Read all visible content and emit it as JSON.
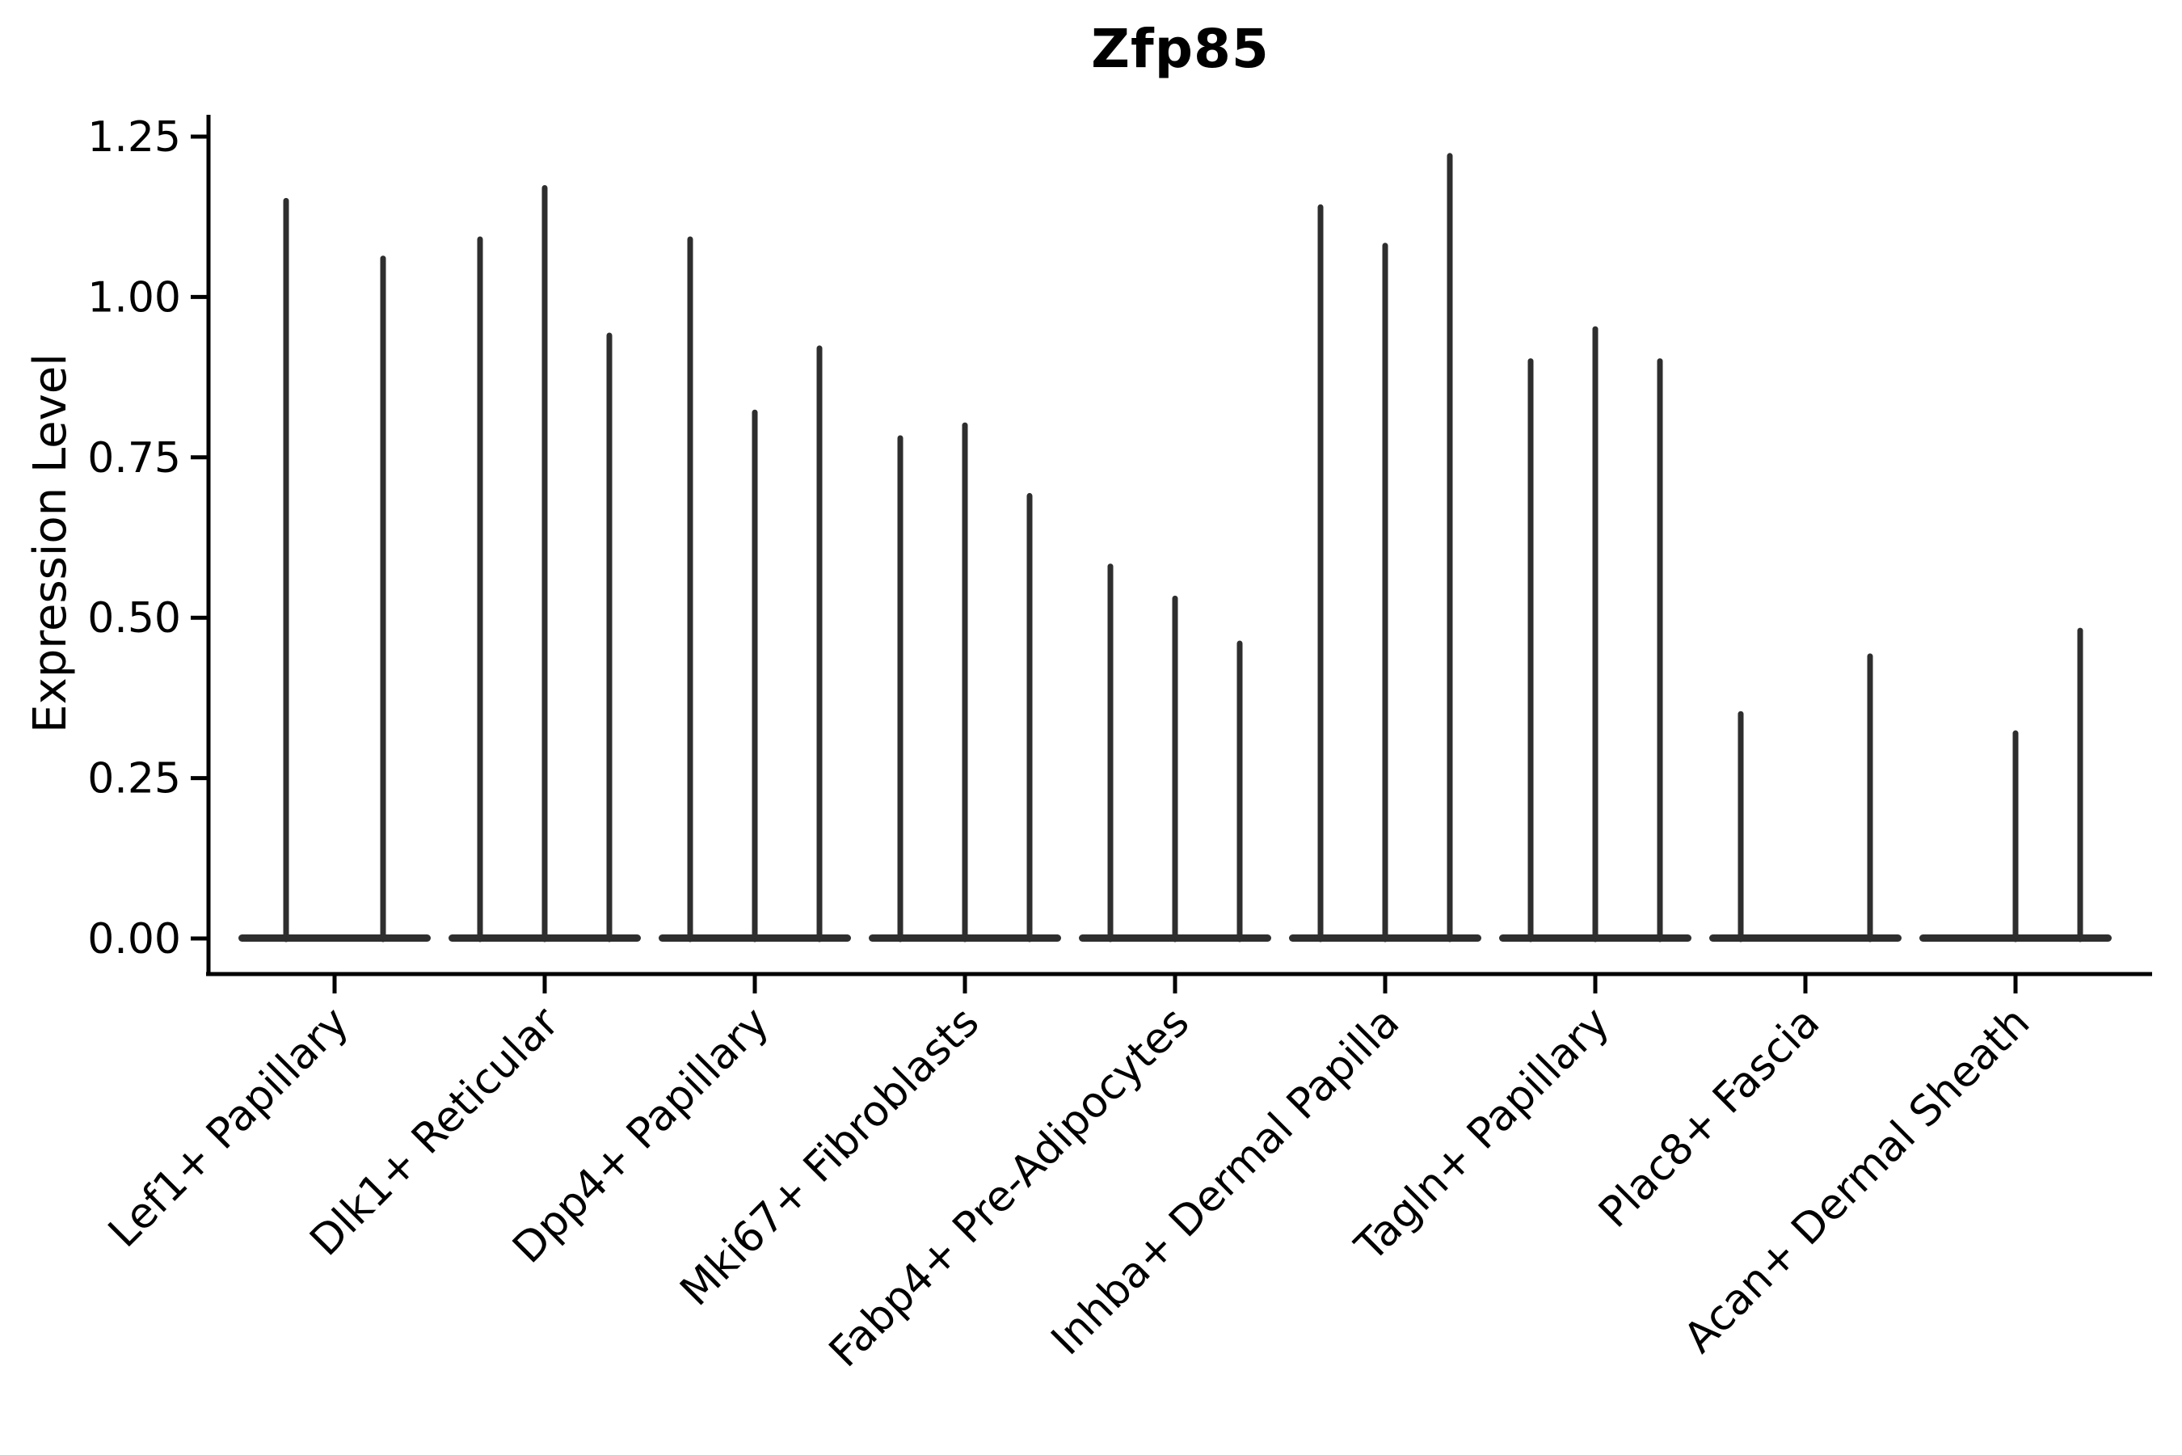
{
  "page": {
    "background_color": "#ffffff",
    "text_color": "#000000"
  },
  "chart_data": {
    "type": "violin",
    "title": "Zfp85",
    "ylabel": "Expression Level",
    "xlabel": "",
    "categories": [
      "Lef1+ Papillary",
      "Dlk1+ Reticular",
      "Dpp4+ Papillary",
      "Mki67+ Fibroblasts",
      "Fabp4+ Pre-Adipocytes",
      "Inhba+ Dermal Papilla",
      "Tagln+ Papillary",
      "Plac8+ Fascia",
      "Acan+ Dermal Sheath"
    ],
    "violin_max_expression": [
      [
        1.15,
        1.06
      ],
      [
        1.09,
        1.17,
        0.94
      ],
      [
        1.09,
        0.82,
        0.92
      ],
      [
        0.78,
        0.8,
        0.69
      ],
      [
        0.58,
        0.53,
        0.46
      ],
      [
        1.14,
        1.08,
        1.22
      ],
      [
        0.9,
        0.95,
        0.9
      ],
      [
        0.35,
        0.0,
        0.44
      ],
      [
        0.0,
        0.32,
        0.48
      ]
    ],
    "yticks": [
      0.0,
      0.25,
      0.5,
      0.75,
      1.0,
      1.25
    ],
    "ytick_labels": [
      "0.00",
      "0.25",
      "0.50",
      "0.75",
      "1.00",
      "1.25"
    ],
    "ylim": [
      -0.055,
      1.284
    ],
    "grid": "off",
    "legend": "none",
    "xtick_label_rotation_deg": 45,
    "colors": {
      "violin": "#2e2e2e",
      "axis": "#000000",
      "background": "#ffffff"
    }
  }
}
